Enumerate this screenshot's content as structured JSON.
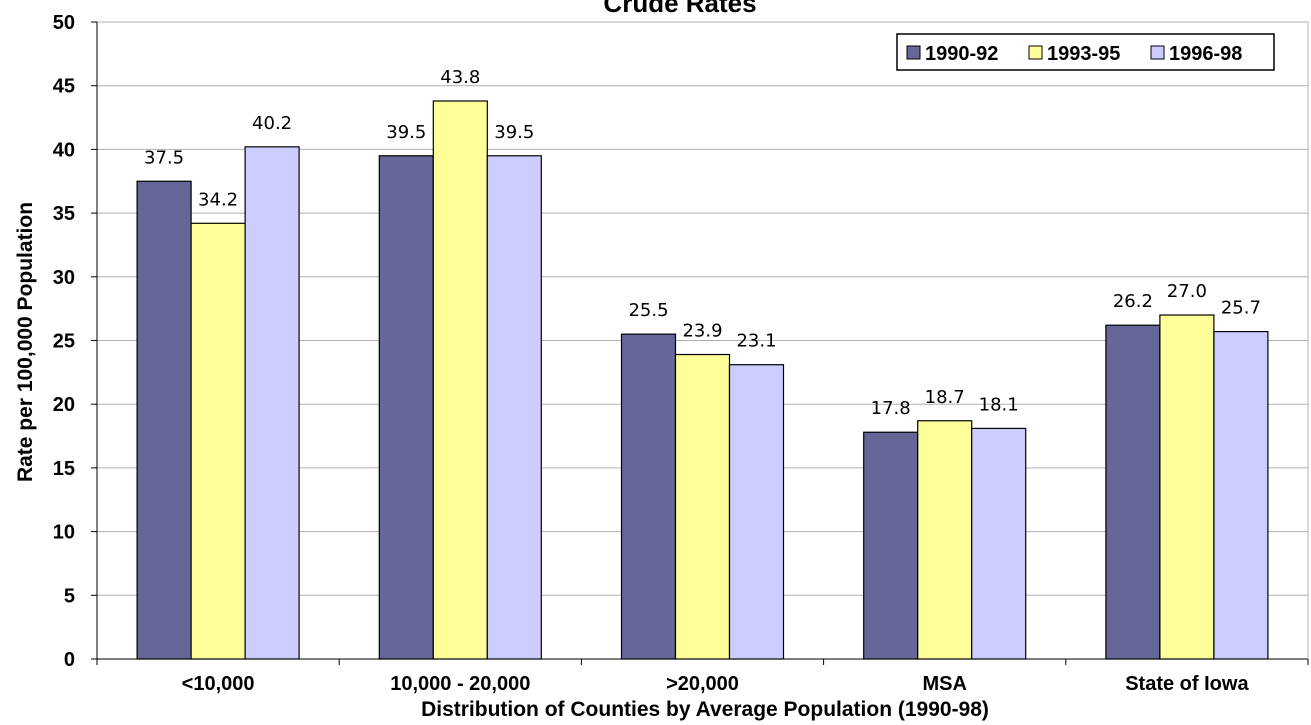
{
  "chart_data": {
    "type": "bar",
    "title": "Crude Rates",
    "xlabel": "Distribution of Counties by Average Population (1990-98)",
    "ylabel": "Rate per 100,000 Population",
    "ylim": [
      0,
      50
    ],
    "yticks": [
      0,
      5,
      10,
      15,
      20,
      25,
      30,
      35,
      40,
      45,
      50
    ],
    "grid": true,
    "legend_position": "top-right",
    "categories": [
      "<10,000",
      "10,000 - 20,000",
      ">20,000",
      "MSA",
      "State of Iowa"
    ],
    "series": [
      {
        "name": "1990-92",
        "color": "#666699",
        "values": [
          37.5,
          39.5,
          25.5,
          17.8,
          26.2
        ],
        "labels": [
          "37.5",
          "39.5",
          "25.5",
          "17.8",
          "26.2"
        ]
      },
      {
        "name": "1993-95",
        "color": "#ffff99",
        "values": [
          34.2,
          43.8,
          23.9,
          18.7,
          27.0
        ],
        "labels": [
          "34.2",
          "43.8",
          "23.9",
          "18.7",
          "27.0"
        ]
      },
      {
        "name": "1996-98",
        "color": "#ccccff",
        "values": [
          40.2,
          39.5,
          23.1,
          18.1,
          25.7
        ],
        "labels": [
          "40.2",
          "39.5",
          "23.1",
          "18.1",
          "25.7"
        ]
      }
    ]
  }
}
